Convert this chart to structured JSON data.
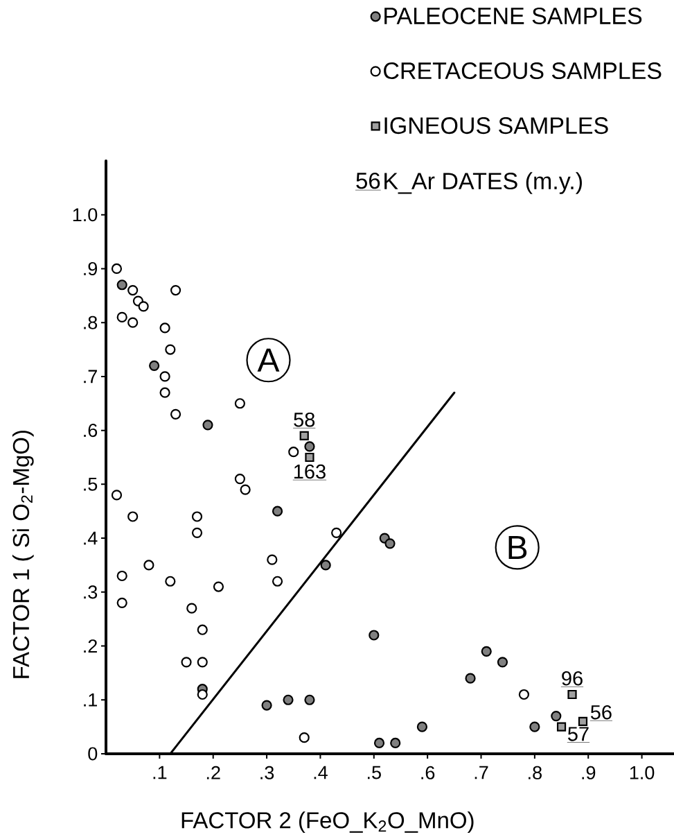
{
  "chart_data": {
    "type": "scatter",
    "xlabel": "FACTOR 2 (FeO_K$_{2}$O_MnO)",
    "ylabel": "FACTOR 1 ( Si O$_{2}$-MgO)",
    "xlim": [
      0,
      1.06
    ],
    "ylim": [
      0,
      1.1
    ],
    "xticks": [
      {
        "value": 0.1,
        "label": ".1"
      },
      {
        "value": 0.2,
        "label": ".2"
      },
      {
        "value": 0.3,
        "label": ".3"
      },
      {
        "value": 0.4,
        "label": ".4"
      },
      {
        "value": 0.5,
        "label": ".5"
      },
      {
        "value": 0.6,
        "label": ".6"
      },
      {
        "value": 0.7,
        "label": ".7"
      },
      {
        "value": 0.8,
        "label": ".8"
      },
      {
        "value": 0.9,
        "label": ".9"
      },
      {
        "value": 1,
        "label": "1.0"
      }
    ],
    "yticks": [
      0,
      {
        "value": 0.1,
        "label": ".1"
      },
      {
        "value": 0.2,
        "label": ".2"
      },
      {
        "value": 0.3,
        "label": ".3"
      },
      {
        "value": 0.4,
        "label": ".4"
      },
      {
        "value": 0.5,
        "label": ".5"
      },
      {
        "value": 0.6,
        "label": ".6"
      },
      {
        "value": 0.7,
        "label": ".7"
      },
      {
        "value": 0.8,
        "label": ".8"
      },
      {
        "value": 0.9,
        "label": ".9"
      },
      {
        "value": 1,
        "label": "1.0"
      }
    ],
    "legend": "top right",
    "series": [
      {
        "name": "PALEOCENE SAMPLES",
        "color": "#808080",
        "marker": "circle",
        "x": [
          0.03,
          0.09,
          0.19,
          0.38,
          0.32,
          0.41,
          0.52,
          0.53,
          0.5,
          0.18,
          0.3,
          0.34,
          0.38,
          0.51,
          0.54,
          0.59,
          0.68,
          0.71,
          0.74,
          0.8,
          0.84
        ],
        "values": [
          0.87,
          0.72,
          0.61,
          0.57,
          0.45,
          0.35,
          0.4,
          0.39,
          0.22,
          0.12,
          0.09,
          0.1,
          0.1,
          0.02,
          0.02,
          0.05,
          0.14,
          0.19,
          0.17,
          0.05,
          0.07
        ]
      },
      {
        "name": "CRETACEOUS SAMPLES",
        "color": "#ffffff",
        "marker": "circle",
        "x": [
          0.02,
          0.05,
          0.06,
          0.07,
          0.13,
          0.03,
          0.05,
          0.11,
          0.12,
          0.11,
          0.11,
          0.25,
          0.13,
          0.35,
          0.25,
          0.26,
          0.02,
          0.05,
          0.17,
          0.17,
          0.43,
          0.08,
          0.31,
          0.03,
          0.12,
          0.21,
          0.32,
          0.03,
          0.16,
          0.18,
          0.15,
          0.18,
          0.18,
          0.37,
          0.78
        ],
        "values": [
          0.9,
          0.86,
          0.84,
          0.83,
          0.86,
          0.81,
          0.8,
          0.79,
          0.75,
          0.7,
          0.67,
          0.65,
          0.63,
          0.56,
          0.51,
          0.49,
          0.48,
          0.44,
          0.44,
          0.41,
          0.41,
          0.35,
          0.36,
          0.33,
          0.32,
          0.31,
          0.32,
          0.28,
          0.27,
          0.23,
          0.17,
          0.17,
          0.11,
          0.03,
          0.11
        ]
      },
      {
        "name": "IGNEOUS SAMPLES",
        "color": "#a0a0a0",
        "marker": "square",
        "x": [
          0.37,
          0.38,
          0.87,
          0.89,
          0.85
        ],
        "values": [
          0.59,
          0.55,
          0.11,
          0.06,
          0.05
        ]
      },
      {
        "type": "line",
        "color": "#000000",
        "x": [
          0.12,
          0.65
        ],
        "values": [
          0,
          0.67
        ]
      }
    ],
    "annotations": [
      "A",
      "B",
      {
        "text": "58",
        "x": 0.37,
        "y": 0.59
      },
      {
        "text": "163",
        "x": 0.38,
        "y": 0.55
      },
      {
        "text": "96",
        "x": 0.87,
        "y": 0.11
      },
      {
        "text": "56",
        "x": 0.89,
        "y": 0.06
      },
      {
        "text": "57",
        "x": 0.85,
        "y": 0.05
      },
      "56",
      "K_Ar DATES (m.y.)"
    ]
  }
}
